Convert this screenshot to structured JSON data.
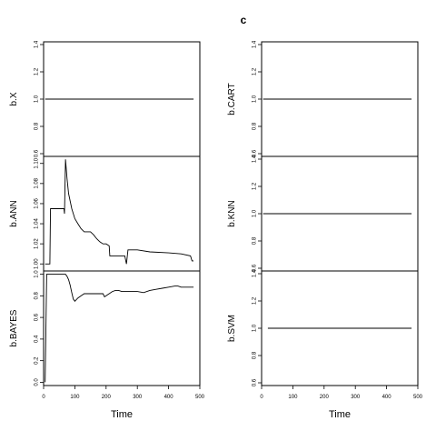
{
  "figure_title": "c",
  "chart_data": [
    {
      "type": "line",
      "id": "b-x",
      "ylabel": "b.X",
      "xlabel": "",
      "xlim": [
        0,
        500
      ],
      "ylim": [
        0.58,
        1.42
      ],
      "yticks": [
        0.6,
        0.8,
        1.0,
        1.2,
        1.4
      ],
      "ytick_labels": [
        "0.6",
        "0.8",
        "1.0",
        "1.2",
        "1.4"
      ],
      "xticks": [],
      "series": [
        {
          "x": [
            5,
            480
          ],
          "y": [
            1.0,
            1.0
          ]
        }
      ]
    },
    {
      "type": "line",
      "id": "b-ann",
      "ylabel": "b.ANN",
      "xlabel": "",
      "xlim": [
        0,
        500
      ],
      "ylim": [
        0.993,
        1.107
      ],
      "yticks": [
        1.0,
        1.02,
        1.04,
        1.06,
        1.08,
        1.1
      ],
      "ytick_labels": [
        "1.00",
        "1.02",
        "1.04",
        "1.06",
        "1.08",
        "1.10"
      ],
      "xticks": [],
      "series": [
        {
          "x": [
            5,
            20,
            22,
            65,
            67,
            70,
            75,
            80,
            90,
            100,
            110,
            120,
            130,
            140,
            150,
            160,
            170,
            180,
            190,
            200,
            210,
            212,
            260,
            265,
            270,
            275,
            280,
            300,
            340,
            400,
            440,
            470,
            475,
            480
          ],
          "y": [
            1.0,
            1.0,
            1.055,
            1.055,
            1.05,
            1.104,
            1.085,
            1.07,
            1.055,
            1.045,
            1.04,
            1.035,
            1.032,
            1.032,
            1.032,
            1.029,
            1.025,
            1.022,
            1.02,
            1.02,
            1.018,
            1.008,
            1.008,
            1.0,
            1.014,
            1.014,
            1.014,
            1.014,
            1.012,
            1.011,
            1.01,
            1.008,
            1.003,
            1.003
          ]
        }
      ]
    },
    {
      "type": "line",
      "id": "b-bayes",
      "ylabel": "b.BAYES",
      "xlabel": "Time",
      "xlim": [
        0,
        500
      ],
      "ylim": [
        -0.03,
        1.03
      ],
      "yticks": [
        0.0,
        0.2,
        0.4,
        0.6,
        0.8,
        1.0
      ],
      "ytick_labels": [
        "0.0",
        "0.2",
        "0.4",
        "0.6",
        "0.8",
        "1.0"
      ],
      "xticks": [
        0,
        100,
        200,
        300,
        400,
        500
      ],
      "xtick_labels": [
        "0",
        "100",
        "200",
        "300",
        "400",
        "500"
      ],
      "series": [
        {
          "x": [
            5,
            10,
            20,
            30,
            40,
            50,
            60,
            70,
            75,
            80,
            85,
            90,
            95,
            100,
            110,
            120,
            130,
            140,
            150,
            160,
            170,
            180,
            190,
            195,
            200,
            210,
            220,
            230,
            240,
            250,
            260,
            270,
            280,
            290,
            300,
            320,
            340,
            360,
            380,
            400,
            420,
            430,
            440,
            460,
            480
          ],
          "y": [
            0.0,
            1.0,
            1.0,
            1.0,
            1.0,
            1.0,
            1.0,
            1.0,
            0.98,
            0.95,
            0.9,
            0.83,
            0.77,
            0.75,
            0.78,
            0.8,
            0.82,
            0.82,
            0.82,
            0.82,
            0.82,
            0.82,
            0.82,
            0.79,
            0.8,
            0.82,
            0.84,
            0.85,
            0.85,
            0.84,
            0.84,
            0.84,
            0.84,
            0.84,
            0.84,
            0.83,
            0.85,
            0.86,
            0.87,
            0.88,
            0.89,
            0.89,
            0.88,
            0.88,
            0.88
          ]
        }
      ]
    },
    {
      "type": "line",
      "id": "b-cart",
      "ylabel": "b.CART",
      "xlabel": "",
      "xlim": [
        0,
        500
      ],
      "ylim": [
        0.58,
        1.42
      ],
      "yticks": [
        0.6,
        0.8,
        1.0,
        1.2,
        1.4
      ],
      "ytick_labels": [
        "0.6",
        "0.8",
        "1.0",
        "1.2",
        "1.4"
      ],
      "xticks": [],
      "series": [
        {
          "x": [
            5,
            480
          ],
          "y": [
            1.0,
            1.0
          ]
        }
      ]
    },
    {
      "type": "line",
      "id": "b-knn",
      "ylabel": "b.KNN",
      "xlabel": "",
      "xlim": [
        0,
        500
      ],
      "ylim": [
        0.58,
        1.42
      ],
      "yticks": [
        0.6,
        0.8,
        1.0,
        1.2,
        1.4
      ],
      "ytick_labels": [
        "0.6",
        "0.8",
        "1.0",
        "1.2",
        "1.4"
      ],
      "xticks": [],
      "series": [
        {
          "x": [
            5,
            480
          ],
          "y": [
            1.0,
            1.0
          ]
        }
      ]
    },
    {
      "type": "line",
      "id": "b-svm",
      "ylabel": "b.SVM",
      "xlabel": "Time",
      "xlim": [
        0,
        500
      ],
      "ylim": [
        0.58,
        1.42
      ],
      "yticks": [
        0.6,
        0.8,
        1.0,
        1.2,
        1.4
      ],
      "ytick_labels": [
        "0.6",
        "0.8",
        "1.0",
        "1.2",
        "1.4"
      ],
      "xticks": [
        0,
        100,
        200,
        300,
        400,
        500
      ],
      "xtick_labels": [
        "0",
        "100",
        "200",
        "300",
        "400",
        "500"
      ],
      "series": [
        {
          "x": [
            20,
            480
          ],
          "y": [
            1.0,
            1.0
          ]
        }
      ]
    }
  ]
}
